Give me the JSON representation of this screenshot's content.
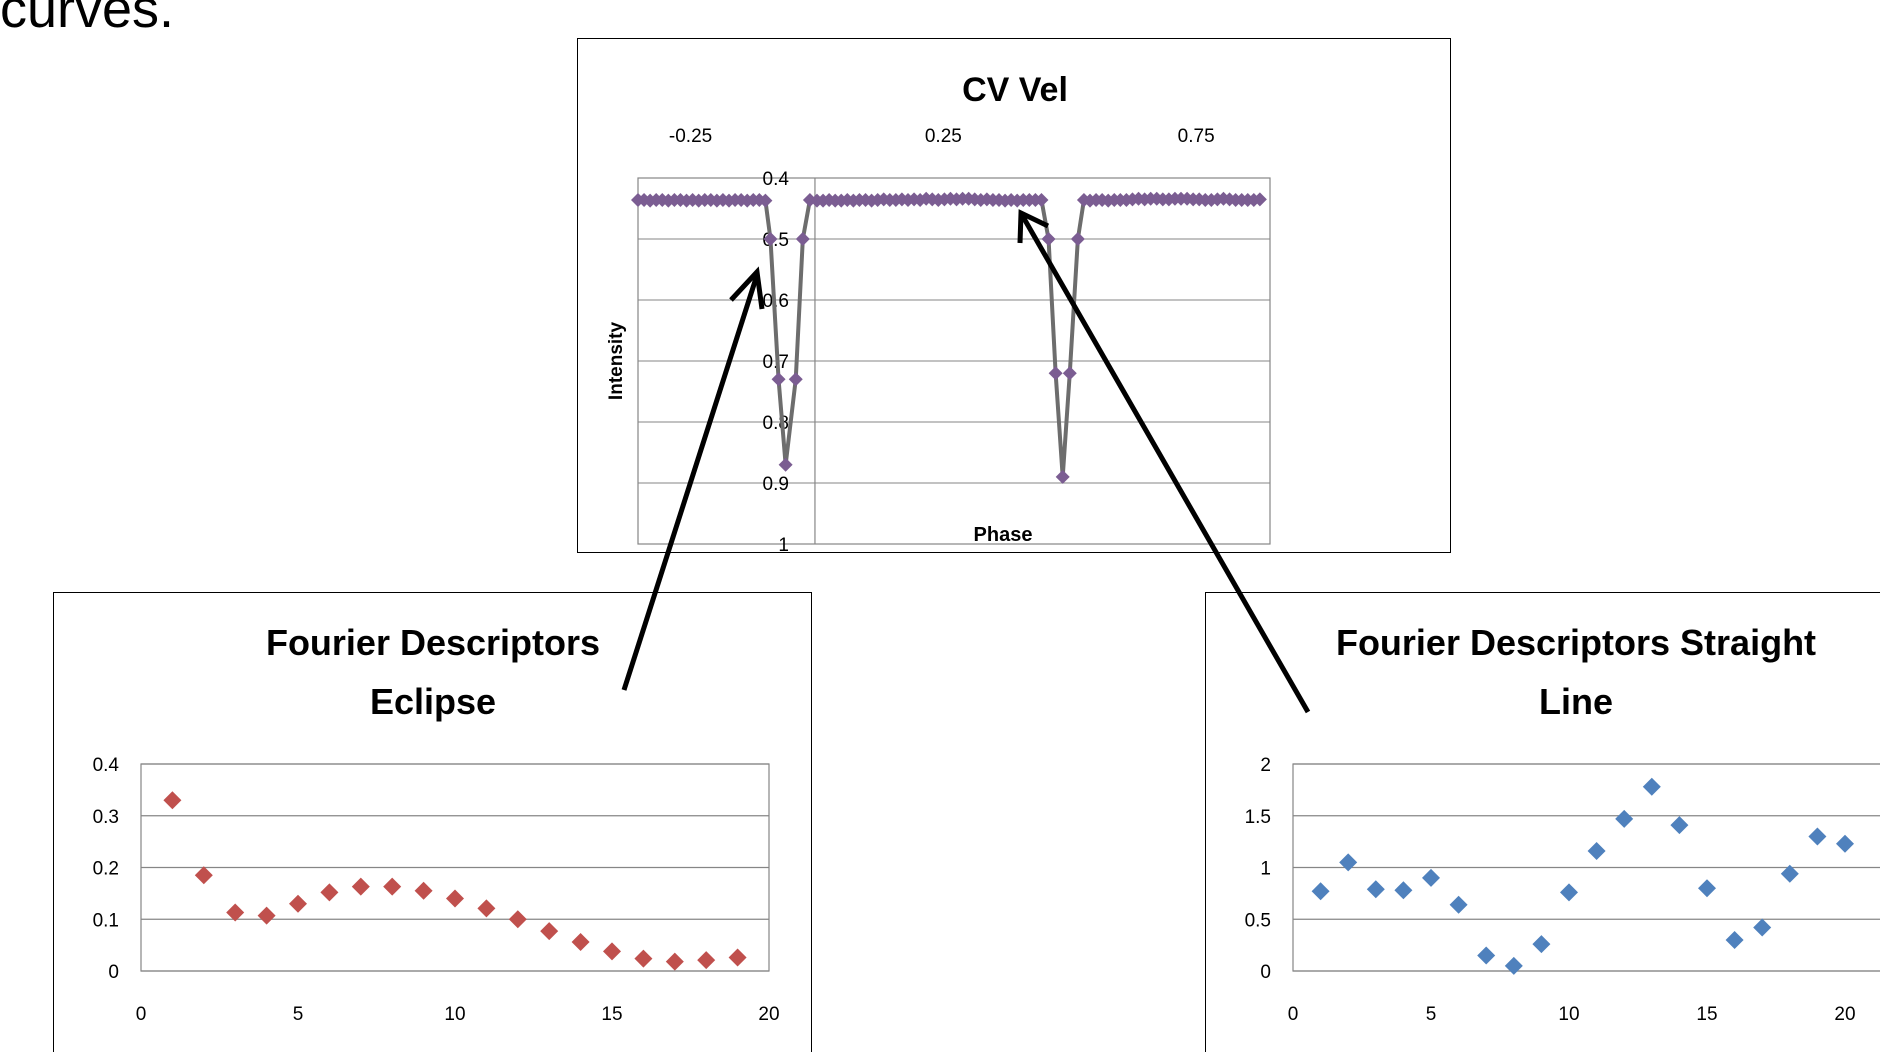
{
  "caption": "curves.",
  "chart_data": [
    {
      "id": "cv-vel",
      "type": "line",
      "title": "CV Vel",
      "xlabel": "Phase",
      "ylabel": "Intensity",
      "x_ticks": [
        "-0.25",
        "0.25",
        "0.75"
      ],
      "y_ticks": [
        "0.4",
        "0.5",
        "0.6",
        "0.7",
        "0.8",
        "0.9",
        "1"
      ],
      "xlim": [
        -0.35,
        0.9
      ],
      "ylim": [
        0.4,
        1.0
      ],
      "y_reversed": true,
      "grid": true,
      "color": "#7b5d92",
      "line_color": "#6d6d6d",
      "series": [
        {
          "x": [
            -0.35,
            -0.338,
            -0.326,
            -0.314,
            -0.302,
            -0.29,
            -0.278,
            -0.266,
            -0.254,
            -0.242,
            -0.23,
            -0.218,
            -0.206,
            -0.194,
            -0.182,
            -0.17,
            -0.158,
            -0.146,
            -0.134,
            -0.122,
            -0.11,
            -0.098,
            -0.088,
            -0.072,
            -0.058,
            -0.038,
            -0.024,
            -0.01,
            0.004,
            0.016,
            0.028,
            0.04,
            0.052,
            0.064,
            0.076,
            0.088,
            0.1,
            0.112,
            0.124,
            0.136,
            0.148,
            0.16,
            0.172,
            0.184,
            0.196,
            0.208,
            0.22,
            0.232,
            0.244,
            0.256,
            0.268,
            0.28,
            0.292,
            0.304,
            0.316,
            0.328,
            0.34,
            0.352,
            0.364,
            0.376,
            0.388,
            0.4,
            0.412,
            0.424,
            0.436,
            0.448,
            0.462,
            0.476,
            0.49,
            0.504,
            0.52,
            0.532,
            0.544,
            0.556,
            0.568,
            0.58,
            0.592,
            0.604,
            0.616,
            0.628,
            0.64,
            0.652,
            0.664,
            0.676,
            0.688,
            0.7,
            0.712,
            0.724,
            0.736,
            0.748,
            0.76,
            0.772,
            0.784,
            0.796,
            0.808,
            0.82,
            0.832,
            0.844,
            0.856,
            0.868,
            0.88
          ],
          "y": [
            0.436,
            0.436,
            0.437,
            0.436,
            0.436,
            0.437,
            0.436,
            0.436,
            0.437,
            0.436,
            0.437,
            0.436,
            0.436,
            0.437,
            0.436,
            0.437,
            0.436,
            0.436,
            0.437,
            0.436,
            0.436,
            0.437,
            0.5,
            0.73,
            0.87,
            0.73,
            0.5,
            0.436,
            0.437,
            0.437,
            0.436,
            0.437,
            0.437,
            0.436,
            0.437,
            0.436,
            0.436,
            0.437,
            0.436,
            0.435,
            0.436,
            0.436,
            0.435,
            0.436,
            0.435,
            0.436,
            0.434,
            0.435,
            0.436,
            0.435,
            0.434,
            0.435,
            0.434,
            0.434,
            0.435,
            0.436,
            0.435,
            0.436,
            0.436,
            0.437,
            0.436,
            0.437,
            0.436,
            0.436,
            0.436,
            0.436,
            0.5,
            0.72,
            0.89,
            0.72,
            0.5,
            0.436,
            0.437,
            0.436,
            0.436,
            0.437,
            0.436,
            0.436,
            0.436,
            0.435,
            0.434,
            0.435,
            0.434,
            0.434,
            0.435,
            0.435,
            0.434,
            0.434,
            0.434,
            0.435,
            0.435,
            0.436,
            0.436,
            0.435,
            0.434,
            0.435,
            0.436,
            0.436,
            0.436,
            0.436,
            0.435
          ]
        }
      ]
    },
    {
      "id": "fd-eclipse",
      "type": "scatter",
      "title": "Fourier Descriptors Eclipse",
      "title_lines": [
        "Fourier Descriptors",
        "Eclipse"
      ],
      "x_ticks": [
        "0",
        "5",
        "10",
        "15",
        "20"
      ],
      "y_ticks": [
        "0.4",
        "0.3",
        "0.2",
        "0.1",
        "0"
      ],
      "xlim": [
        0,
        20
      ],
      "ylim": [
        0,
        0.4
      ],
      "grid": true,
      "color": "#c0504d",
      "series": [
        {
          "x": [
            1,
            2,
            3,
            4,
            5,
            6,
            7,
            8,
            9,
            10,
            11,
            12,
            13,
            14,
            15,
            16,
            17,
            18,
            19
          ],
          "y": [
            0.33,
            0.185,
            0.113,
            0.107,
            0.13,
            0.152,
            0.163,
            0.163,
            0.155,
            0.14,
            0.121,
            0.1,
            0.077,
            0.056,
            0.038,
            0.024,
            0.018,
            0.021,
            0.026
          ]
        }
      ]
    },
    {
      "id": "fd-straight",
      "type": "scatter",
      "title": "Fourier Descriptors  Straight Line",
      "title_lines": [
        "Fourier Descriptors  Straight",
        "Line"
      ],
      "x_ticks": [
        "0",
        "5",
        "10",
        "15",
        "20"
      ],
      "y_ticks": [
        "2",
        "1.5",
        "1",
        "0.5",
        "0"
      ],
      "xlim": [
        0,
        22.5
      ],
      "ylim": [
        0,
        2
      ],
      "grid": true,
      "color": "#4f81bd",
      "series": [
        {
          "x": [
            1,
            2,
            3,
            4,
            5,
            6,
            7,
            8,
            9,
            10,
            11,
            12,
            13,
            14,
            15,
            16,
            17,
            18,
            19,
            20
          ],
          "y": [
            0.77,
            1.05,
            0.79,
            0.78,
            0.9,
            0.64,
            0.15,
            0.05,
            0.26,
            0.76,
            1.16,
            1.47,
            1.78,
            1.41,
            0.8,
            0.3,
            0.42,
            0.94,
            1.3,
            1.23
          ]
        }
      ]
    }
  ]
}
